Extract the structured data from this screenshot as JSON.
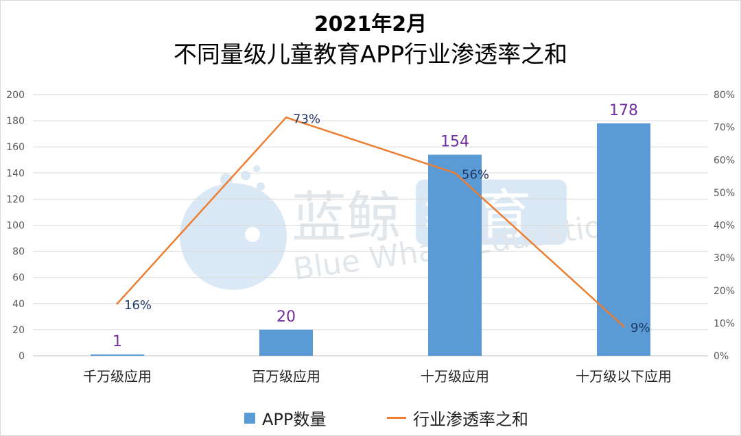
{
  "chart_data": {
    "type": "bar",
    "title": "2021年2月",
    "subtitle": "不同量级儿童教育APP行业渗透率之和",
    "categories": [
      "千万级应用",
      "百万级应用",
      "十万级应用",
      "十万级以下应用"
    ],
    "series": [
      {
        "name": "APP数量",
        "type": "bar",
        "axis": "left",
        "color": "#5b9bd5",
        "values": [
          1,
          20,
          154,
          178
        ],
        "labels": [
          "1",
          "20",
          "154",
          "178"
        ]
      },
      {
        "name": "行业渗透率之和",
        "type": "line",
        "axis": "right",
        "color": "#ed7d31",
        "values": [
          16,
          73,
          56,
          9
        ],
        "labels": [
          "16%",
          "73%",
          "56%",
          "9%"
        ]
      }
    ],
    "y_left": {
      "min": 0,
      "max": 200,
      "ticks": [
        "0",
        "20",
        "40",
        "60",
        "80",
        "100",
        "120",
        "140",
        "160",
        "180",
        "200"
      ]
    },
    "y_right": {
      "min": 0,
      "max": 80,
      "ticks": [
        "0%",
        "10%",
        "20%",
        "30%",
        "40%",
        "50%",
        "60%",
        "70%",
        "80%"
      ]
    },
    "grid": true,
    "legend_position": "bottom",
    "bar_label_color": "#7030a0",
    "line_label_color": "#1f3864"
  },
  "watermark": {
    "text_cn": "蓝鲸教育",
    "text_en": "Blue Whale Education"
  }
}
